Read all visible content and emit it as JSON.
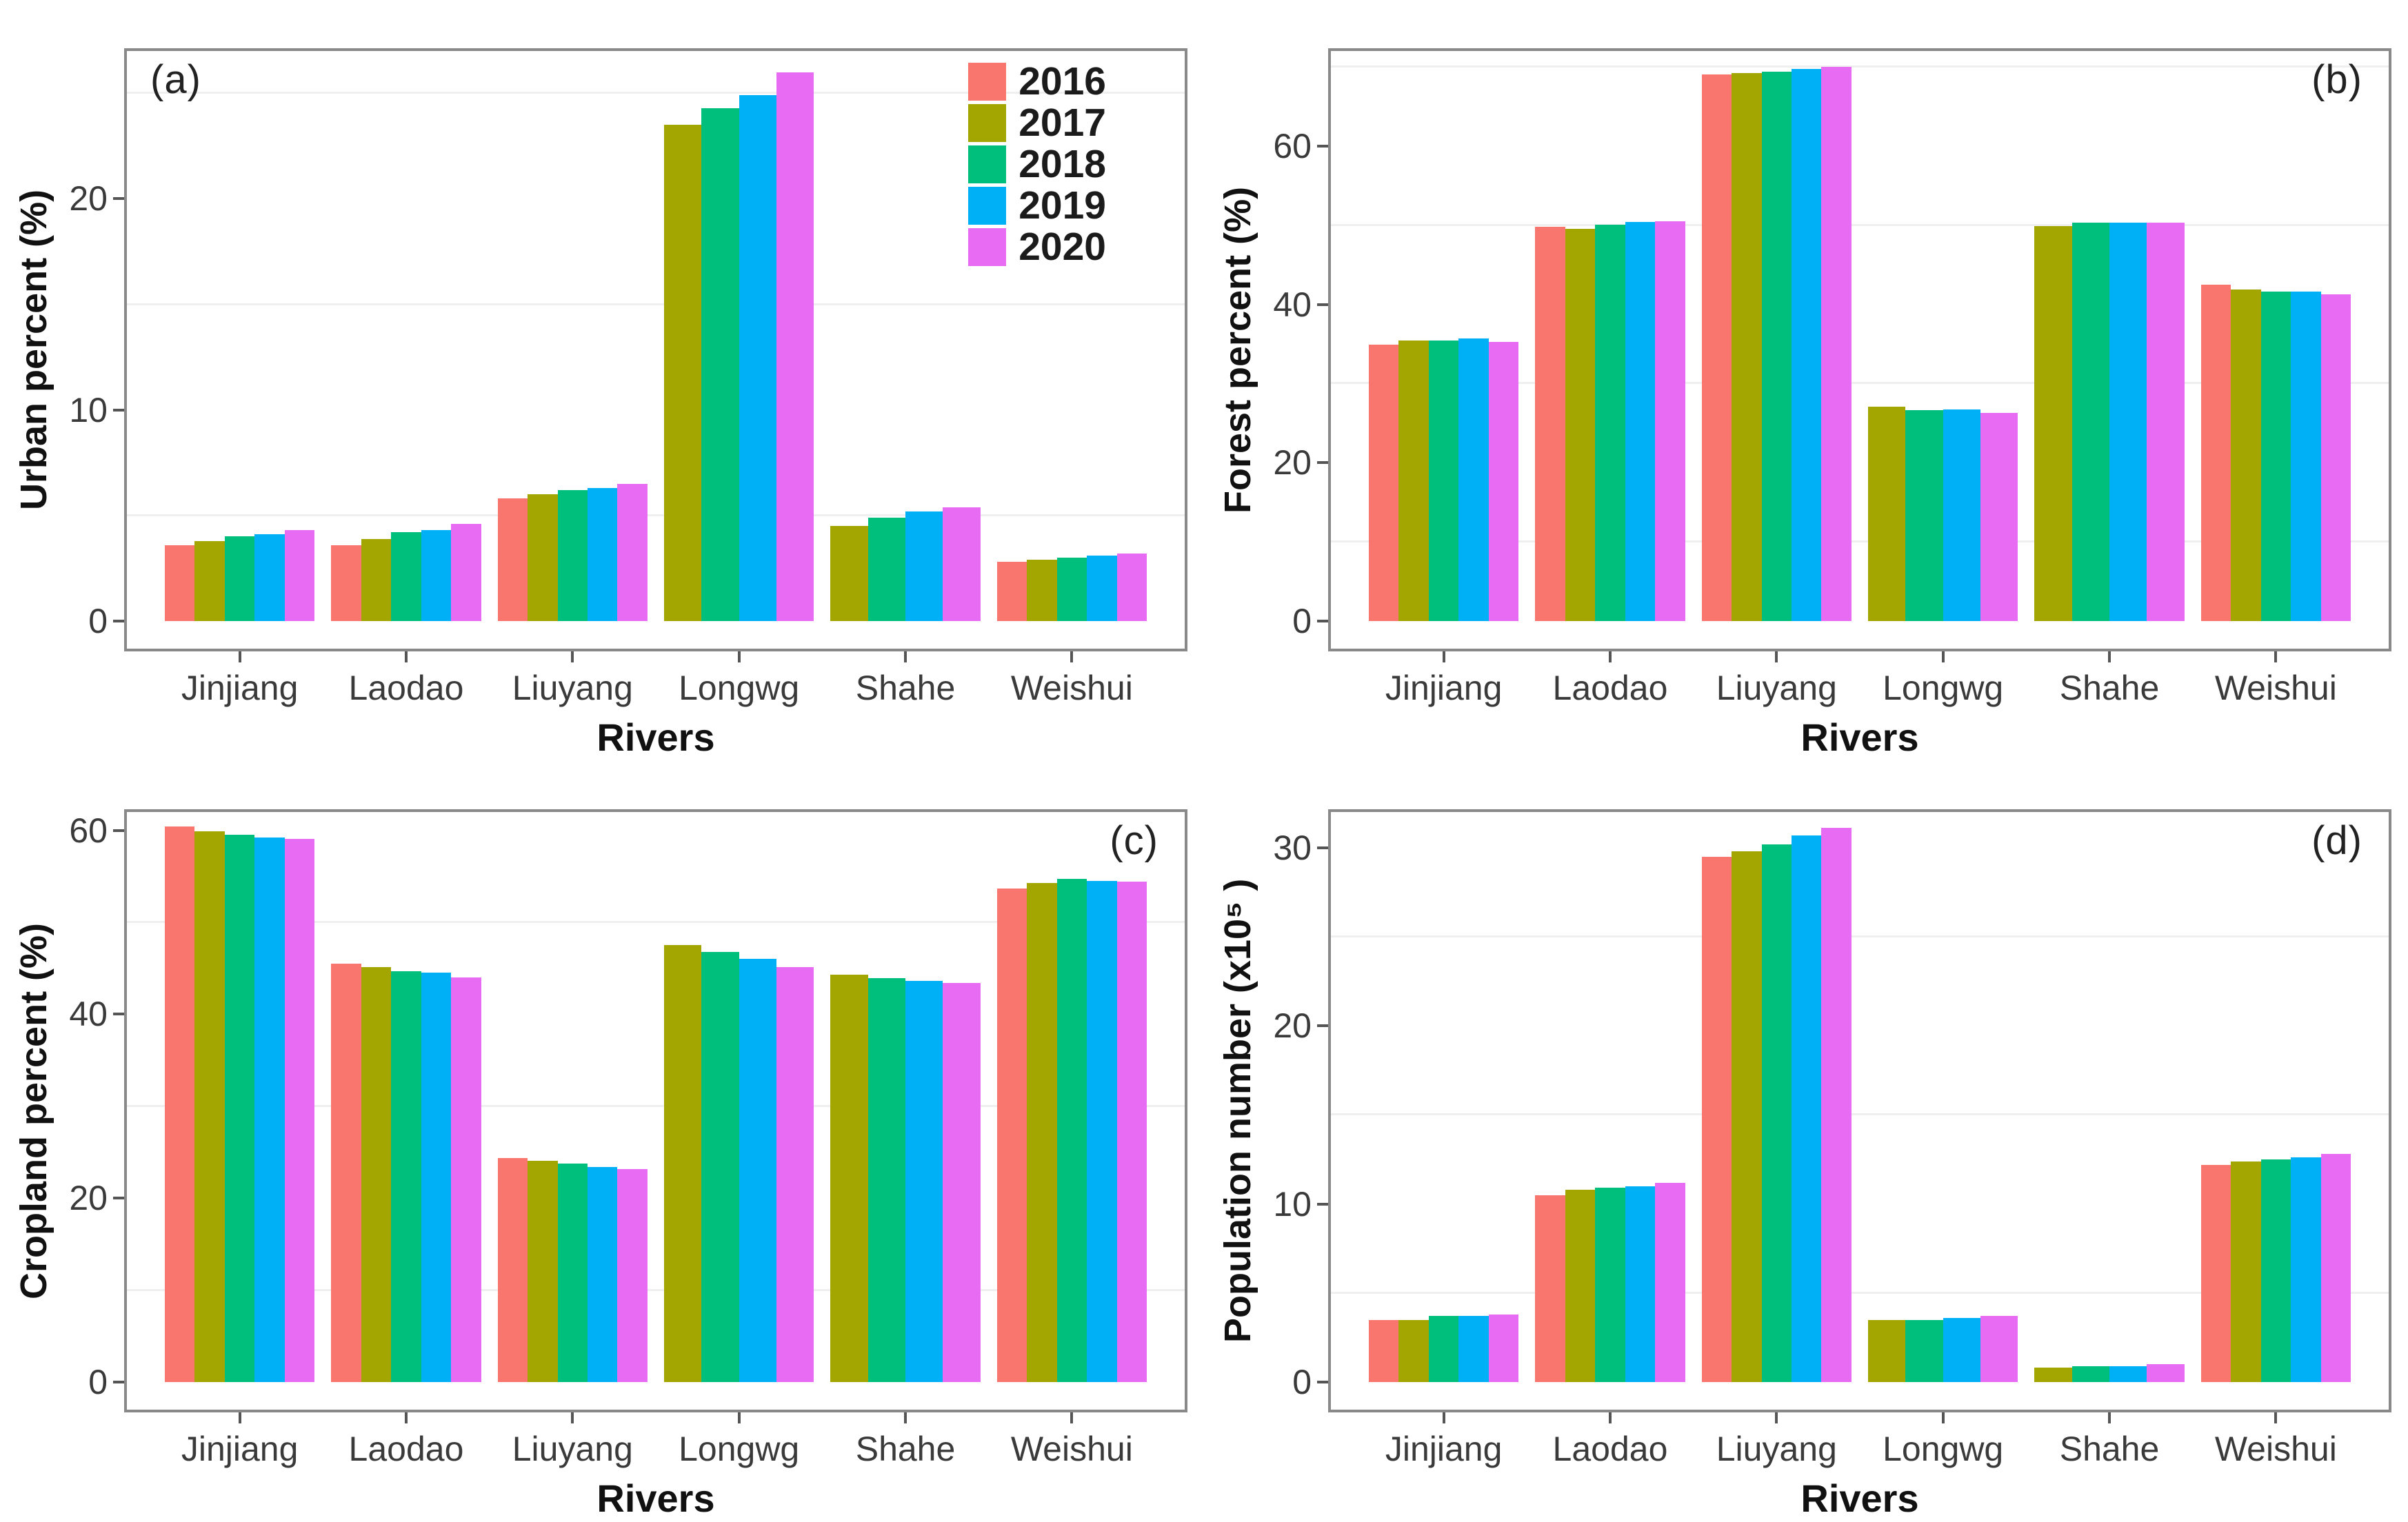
{
  "figure": {
    "xlabel": "Rivers",
    "categories": [
      "Jinjiang",
      "Laodao",
      "Liuyang",
      "Longwg",
      "Shahe",
      "Weishui"
    ],
    "legend": {
      "entries": [
        {
          "label": "2016",
          "color": "#F8766D"
        },
        {
          "label": "2017",
          "color": "#A3A500"
        },
        {
          "label": "2018",
          "color": "#00BF7D"
        },
        {
          "label": "2019",
          "color": "#00B0F6"
        },
        {
          "label": "2020",
          "color": "#E76BF3"
        }
      ]
    },
    "styles": {
      "grid_color": "#efefef",
      "border_color": "#898989",
      "tick_color": "#555555",
      "tick_label_color": "#3a3a3a",
      "axis_title_color": "#111111",
      "letter_color": "#222222",
      "background": "#ffffff"
    }
  },
  "chart_data": [
    {
      "type": "bar",
      "panel_letter": "(a)",
      "letter_position": "left",
      "show_legend": true,
      "ylabel": "Urban percent (%)",
      "xlabel": "Rivers",
      "ylim": [
        0,
        27
      ],
      "yticks": [
        0,
        10,
        20
      ],
      "minor_gridlines": [
        5,
        15,
        25
      ],
      "categories": [
        "Jinjiang",
        "Laodao",
        "Liuyang",
        "Longwg",
        "Shahe",
        "Weishui"
      ],
      "series": [
        {
          "name": "2016",
          "color": "#F8766D",
          "values": [
            3.6,
            3.6,
            5.8,
            null,
            null,
            2.8
          ]
        },
        {
          "name": "2017",
          "color": "#A3A500",
          "values": [
            3.8,
            3.9,
            6.0,
            23.5,
            4.5,
            2.9
          ]
        },
        {
          "name": "2018",
          "color": "#00BF7D",
          "values": [
            4.0,
            4.2,
            6.2,
            24.3,
            4.9,
            3.0
          ]
        },
        {
          "name": "2019",
          "color": "#00B0F6",
          "values": [
            4.1,
            4.3,
            6.3,
            24.9,
            5.2,
            3.1
          ]
        },
        {
          "name": "2020",
          "color": "#E76BF3",
          "values": [
            4.3,
            4.6,
            6.5,
            26.0,
            5.4,
            3.2
          ]
        }
      ]
    },
    {
      "type": "bar",
      "panel_letter": "(b)",
      "letter_position": "right",
      "show_legend": false,
      "ylabel": "Forest percent (%)",
      "xlabel": "Rivers",
      "ylim": [
        0,
        72
      ],
      "yticks": [
        0,
        20,
        40,
        60
      ],
      "minor_gridlines": [
        10,
        30,
        50,
        70
      ],
      "categories": [
        "Jinjiang",
        "Laodao",
        "Liuyang",
        "Longwg",
        "Shahe",
        "Weishui"
      ],
      "series": [
        {
          "name": "2016",
          "color": "#F8766D",
          "values": [
            34.9,
            49.8,
            69.0,
            null,
            null,
            42.5
          ]
        },
        {
          "name": "2017",
          "color": "#A3A500",
          "values": [
            35.4,
            49.5,
            69.2,
            27.1,
            49.9,
            41.9
          ]
        },
        {
          "name": "2018",
          "color": "#00BF7D",
          "values": [
            35.4,
            50.1,
            69.4,
            26.6,
            50.3,
            41.6
          ]
        },
        {
          "name": "2019",
          "color": "#00B0F6",
          "values": [
            35.7,
            50.4,
            69.7,
            26.7,
            50.3,
            41.6
          ]
        },
        {
          "name": "2020",
          "color": "#E76BF3",
          "values": [
            35.3,
            50.5,
            70.0,
            26.3,
            50.3,
            41.3
          ]
        }
      ]
    },
    {
      "type": "bar",
      "panel_letter": "(c)",
      "letter_position": "right",
      "show_legend": false,
      "ylabel": "Cropland percent (%)",
      "xlabel": "Rivers",
      "ylim": [
        0,
        62
      ],
      "yticks": [
        0,
        20,
        40,
        60
      ],
      "minor_gridlines": [
        10,
        30,
        50
      ],
      "categories": [
        "Jinjiang",
        "Laodao",
        "Liuyang",
        "Longwg",
        "Shahe",
        "Weishui"
      ],
      "series": [
        {
          "name": "2016",
          "color": "#F8766D",
          "values": [
            60.4,
            45.5,
            24.4,
            null,
            null,
            53.7
          ]
        },
        {
          "name": "2017",
          "color": "#A3A500",
          "values": [
            59.9,
            45.1,
            24.1,
            47.5,
            44.3,
            54.3
          ]
        },
        {
          "name": "2018",
          "color": "#00BF7D",
          "values": [
            59.5,
            44.7,
            23.8,
            46.8,
            43.9,
            54.7
          ]
        },
        {
          "name": "2019",
          "color": "#00B0F6",
          "values": [
            59.2,
            44.5,
            23.4,
            46.0,
            43.6,
            54.5
          ]
        },
        {
          "name": "2020",
          "color": "#E76BF3",
          "values": [
            59.1,
            44.0,
            23.2,
            45.1,
            43.4,
            54.4
          ]
        }
      ]
    },
    {
      "type": "bar",
      "panel_letter": "(d)",
      "letter_position": "right",
      "show_legend": false,
      "ylabel": "Population number (x10⁵ )",
      "xlabel": "Rivers",
      "ylim": [
        0,
        32
      ],
      "yticks": [
        0,
        10,
        20,
        30
      ],
      "minor_gridlines": [
        5,
        15,
        25
      ],
      "categories": [
        "Jinjiang",
        "Laodao",
        "Liuyang",
        "Longwg",
        "Shahe",
        "Weishui"
      ],
      "series": [
        {
          "name": "2016",
          "color": "#F8766D",
          "values": [
            3.5,
            10.5,
            29.5,
            null,
            null,
            12.2
          ]
        },
        {
          "name": "2017",
          "color": "#A3A500",
          "values": [
            3.5,
            10.8,
            29.8,
            3.5,
            0.8,
            12.4
          ]
        },
        {
          "name": "2018",
          "color": "#00BF7D",
          "values": [
            3.7,
            10.9,
            30.2,
            3.5,
            0.9,
            12.5
          ]
        },
        {
          "name": "2019",
          "color": "#00B0F6",
          "values": [
            3.7,
            11.0,
            30.7,
            3.6,
            0.9,
            12.6
          ]
        },
        {
          "name": "2020",
          "color": "#E76BF3",
          "values": [
            3.8,
            11.2,
            31.1,
            3.7,
            1.0,
            12.8
          ]
        }
      ]
    }
  ]
}
